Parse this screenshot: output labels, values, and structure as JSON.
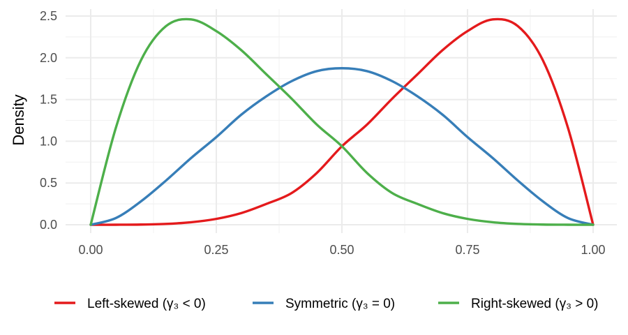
{
  "chart_data": {
    "type": "line",
    "title": "",
    "xlabel": "",
    "ylabel": "Density",
    "xlim": [
      0,
      1
    ],
    "ylim": [
      0,
      2.5
    ],
    "x_ticks": [
      "0.00",
      "0.25",
      "0.50",
      "0.75",
      "1.00"
    ],
    "y_ticks": [
      "0.0",
      "0.5",
      "1.0",
      "1.5",
      "2.0",
      "2.5"
    ],
    "grid": true,
    "legend_position": "bottom",
    "x": [
      0.0,
      0.05,
      0.1,
      0.15,
      0.2,
      0.25,
      0.3,
      0.35,
      0.4,
      0.45,
      0.5,
      0.55,
      0.6,
      0.65,
      0.7,
      0.75,
      0.8,
      0.85,
      0.9,
      0.95,
      1.0
    ],
    "series": [
      {
        "name": "Left-skewed  (γ₃ < 0)",
        "color": "#E41A1C",
        "values": [
          0.0,
          0.0,
          0.002,
          0.01,
          0.03,
          0.07,
          0.14,
          0.25,
          0.38,
          0.62,
          0.94,
          1.2,
          1.51,
          1.8,
          2.09,
          2.32,
          2.46,
          2.38,
          1.97,
          1.16,
          0.0
        ]
      },
      {
        "name": "Symmetric  (γ₃ = 0)",
        "color": "#377EB8",
        "values": [
          0.0,
          0.08,
          0.28,
          0.53,
          0.8,
          1.05,
          1.32,
          1.54,
          1.72,
          1.84,
          1.875,
          1.84,
          1.72,
          1.54,
          1.32,
          1.05,
          0.8,
          0.53,
          0.28,
          0.08,
          0.0
        ]
      },
      {
        "name": "Right-skewed  (γ₃ > 0)",
        "color": "#4DAF4A",
        "values": [
          0.0,
          1.16,
          1.97,
          2.38,
          2.46,
          2.32,
          2.09,
          1.8,
          1.51,
          1.2,
          0.94,
          0.62,
          0.38,
          0.25,
          0.14,
          0.07,
          0.03,
          0.01,
          0.002,
          0.0,
          0.0
        ]
      }
    ]
  }
}
